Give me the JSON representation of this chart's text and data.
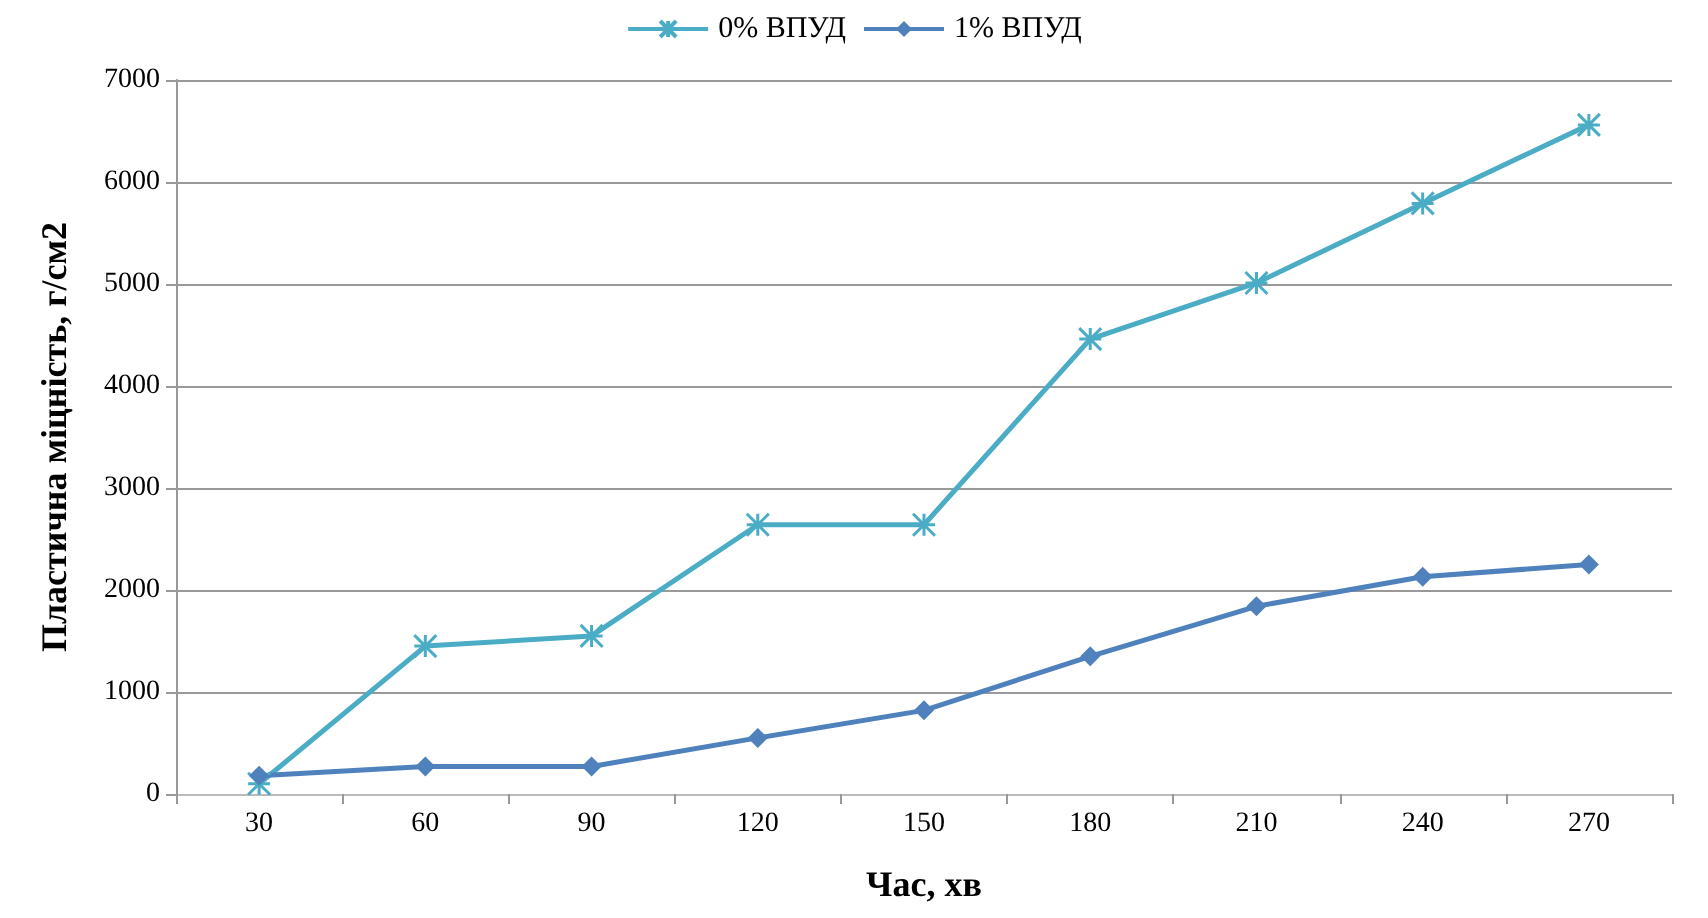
{
  "chart_data": {
    "type": "line",
    "xlabel": "Час, хв",
    "ylabel": "Пластична міцність, г/см2",
    "categories": [
      "30",
      "60",
      "90",
      "120",
      "150",
      "180",
      "210",
      "240",
      "270"
    ],
    "series": [
      {
        "name": "0% ВПУД",
        "color": "#4bacc6",
        "marker": "cross",
        "values": [
          100,
          1450,
          1550,
          2640,
          2640,
          4460,
          5010,
          5790,
          6560
        ]
      },
      {
        "name": "1% ВПУД",
        "color": "#4f81bd",
        "marker": "diamond",
        "values": [
          180,
          270,
          270,
          550,
          820,
          1350,
          1840,
          2130,
          2250
        ]
      }
    ],
    "ylim": [
      0,
      7000
    ],
    "yticks": [
      0,
      1000,
      2000,
      3000,
      4000,
      5000,
      6000,
      7000
    ],
    "grid": "y",
    "legend": "top"
  }
}
